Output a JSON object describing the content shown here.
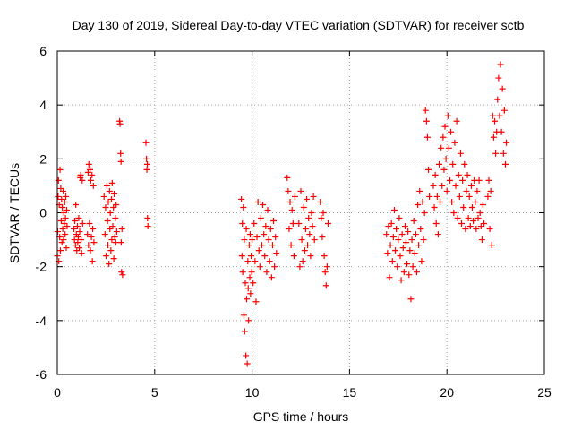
{
  "chart_data": {
    "type": "scatter",
    "title": "Day 130 of 2019, Sidereal Day-to-day VTEC variation (SDTVAR) for receiver sctb",
    "xlabel": "GPS time / hours",
    "ylabel": "SDTVAR / TECUs",
    "xlim": [
      0,
      25
    ],
    "ylim": [
      -6,
      6
    ],
    "xticks": [
      0,
      5,
      10,
      15,
      20,
      25
    ],
    "yticks": [
      -6,
      -4,
      -2,
      0,
      2,
      4,
      6
    ],
    "xtick_labels": [
      "0",
      "5",
      "10",
      "15",
      "20",
      "25"
    ],
    "ytick_labels": [
      "-6",
      "-4",
      "-2",
      "0",
      "2",
      "4",
      "6"
    ],
    "grid": true,
    "legend": "none",
    "marker": "plus",
    "series_color": "#ff0000",
    "points": [
      [
        0.0,
        -1.6
      ],
      [
        0.02,
        -0.7
      ],
      [
        0.04,
        0.6
      ],
      [
        0.06,
        1.2
      ],
      [
        0.08,
        -1.8
      ],
      [
        0.1,
        0.3
      ],
      [
        0.12,
        -0.9
      ],
      [
        0.14,
        1.6
      ],
      [
        0.16,
        -1.4
      ],
      [
        0.18,
        0.9
      ],
      [
        0.2,
        -0.3
      ],
      [
        0.22,
        0.5
      ],
      [
        0.24,
        -1.1
      ],
      [
        0.26,
        0.2
      ],
      [
        0.28,
        -0.6
      ],
      [
        0.3,
        0.8
      ],
      [
        0.32,
        -1.0
      ],
      [
        0.34,
        0.0
      ],
      [
        0.36,
        -0.4
      ],
      [
        0.38,
        0.4
      ],
      [
        0.4,
        -0.8
      ],
      [
        0.42,
        -0.2
      ],
      [
        0.44,
        0.6
      ],
      [
        0.46,
        -1.3
      ],
      [
        0.48,
        0.1
      ],
      [
        0.5,
        -0.5
      ],
      [
        0.85,
        -0.6
      ],
      [
        0.88,
        -1.0
      ],
      [
        0.9,
        -0.3
      ],
      [
        0.93,
        -1.2
      ],
      [
        0.95,
        0.3
      ],
      [
        0.98,
        -0.8
      ],
      [
        1.0,
        -1.4
      ],
      [
        1.03,
        -0.5
      ],
      [
        1.05,
        -1.1
      ],
      [
        1.08,
        -0.9
      ],
      [
        1.1,
        -0.2
      ],
      [
        1.13,
        -1.3
      ],
      [
        1.15,
        -0.7
      ],
      [
        1.18,
        1.3
      ],
      [
        1.2,
        1.4
      ],
      [
        1.22,
        -1.0
      ],
      [
        1.25,
        -1.5
      ],
      [
        1.28,
        1.2
      ],
      [
        1.3,
        -0.4
      ],
      [
        1.55,
        -0.8
      ],
      [
        1.58,
        1.5
      ],
      [
        1.6,
        -1.2
      ],
      [
        1.62,
        1.8
      ],
      [
        1.65,
        -0.4
      ],
      [
        1.68,
        1.6
      ],
      [
        1.7,
        -1.4
      ],
      [
        1.72,
        1.2
      ],
      [
        1.75,
        -0.9
      ],
      [
        1.78,
        1.4
      ],
      [
        1.8,
        -1.8
      ],
      [
        1.82,
        -0.6
      ],
      [
        1.85,
        1.0
      ],
      [
        1.88,
        -1.1
      ],
      [
        2.4,
        0.6
      ],
      [
        2.45,
        -0.8
      ],
      [
        2.48,
        0.2
      ],
      [
        2.5,
        -1.6
      ],
      [
        2.55,
        1.0
      ],
      [
        2.58,
        -0.3
      ],
      [
        2.6,
        -1.2
      ],
      [
        2.62,
        0.4
      ],
      [
        2.65,
        -1.9
      ],
      [
        2.68,
        0.8
      ],
      [
        2.7,
        -0.6
      ],
      [
        2.72,
        0.0
      ],
      [
        2.75,
        -1.4
      ],
      [
        2.78,
        0.5
      ],
      [
        2.8,
        -1.0
      ],
      [
        2.82,
        1.1
      ],
      [
        2.85,
        -0.5
      ],
      [
        2.88,
        0.2
      ],
      [
        2.9,
        -1.7
      ],
      [
        2.92,
        0.7
      ],
      [
        2.95,
        -0.9
      ],
      [
        2.98,
        -0.2
      ],
      [
        3.0,
        -1.1
      ],
      [
        3.02,
        0.3
      ],
      [
        3.05,
        -0.7
      ],
      [
        3.2,
        3.4
      ],
      [
        3.22,
        3.3
      ],
      [
        3.25,
        2.2
      ],
      [
        3.27,
        1.9
      ],
      [
        3.28,
        -1.1
      ],
      [
        3.3,
        -2.2
      ],
      [
        3.32,
        -0.6
      ],
      [
        3.35,
        -2.3
      ],
      [
        4.55,
        2.6
      ],
      [
        4.58,
        2.0
      ],
      [
        4.6,
        1.6
      ],
      [
        4.62,
        1.8
      ],
      [
        4.63,
        -0.2
      ],
      [
        4.65,
        -0.5
      ],
      [
        9.45,
        0.5
      ],
      [
        9.48,
        -1.6
      ],
      [
        9.5,
        -0.4
      ],
      [
        9.52,
        -2.2
      ],
      [
        9.55,
        0.2
      ],
      [
        9.58,
        -3.8
      ],
      [
        9.6,
        -1.0
      ],
      [
        9.62,
        -4.4
      ],
      [
        9.65,
        -2.6
      ],
      [
        9.68,
        -5.3
      ],
      [
        9.7,
        -0.6
      ],
      [
        9.72,
        -3.2
      ],
      [
        9.75,
        -5.6
      ],
      [
        9.78,
        -1.8
      ],
      [
        9.8,
        -2.8
      ],
      [
        9.82,
        -4.0
      ],
      [
        9.85,
        -1.2
      ],
      [
        9.88,
        -2.4
      ],
      [
        9.9,
        -0.8
      ],
      [
        9.92,
        -3.0
      ],
      [
        9.95,
        -1.6
      ],
      [
        9.98,
        -2.2
      ],
      [
        10.0,
        -1.0
      ],
      [
        10.05,
        -2.6
      ],
      [
        10.1,
        -0.4
      ],
      [
        10.15,
        -1.8
      ],
      [
        10.2,
        -3.3
      ],
      [
        10.25,
        -0.9
      ],
      [
        10.3,
        0.4
      ],
      [
        10.35,
        -1.4
      ],
      [
        10.4,
        -2.0
      ],
      [
        10.45,
        -0.2
      ],
      [
        10.5,
        -1.2
      ],
      [
        10.55,
        0.3
      ],
      [
        10.6,
        -0.8
      ],
      [
        10.65,
        -1.6
      ],
      [
        10.7,
        -0.5
      ],
      [
        10.75,
        -2.2
      ],
      [
        10.8,
        0.1
      ],
      [
        10.85,
        -1.0
      ],
      [
        10.9,
        -1.8
      ],
      [
        10.95,
        -0.6
      ],
      [
        11.0,
        -2.4
      ],
      [
        11.05,
        -1.2
      ],
      [
        11.1,
        -0.3
      ],
      [
        11.15,
        -2.0
      ],
      [
        11.2,
        -0.9
      ],
      [
        11.25,
        -1.5
      ],
      [
        11.8,
        1.3
      ],
      [
        11.85,
        0.8
      ],
      [
        11.9,
        -0.6
      ],
      [
        11.95,
        0.4
      ],
      [
        12.0,
        -1.2
      ],
      [
        12.05,
        0.1
      ],
      [
        12.1,
        -0.4
      ],
      [
        12.15,
        -1.6
      ],
      [
        12.2,
        0.6
      ],
      [
        12.4,
        -0.4
      ],
      [
        12.45,
        -2.0
      ],
      [
        12.5,
        0.8
      ],
      [
        12.55,
        -1.0
      ],
      [
        12.6,
        -1.8
      ],
      [
        12.65,
        0.2
      ],
      [
        12.7,
        -1.4
      ],
      [
        12.75,
        -0.6
      ],
      [
        12.8,
        0.5
      ],
      [
        12.85,
        -1.2
      ],
      [
        12.9,
        -0.2
      ],
      [
        12.95,
        -0.8
      ],
      [
        13.0,
        -1.6
      ],
      [
        13.05,
        0.0
      ],
      [
        13.1,
        -0.5
      ],
      [
        13.15,
        0.6
      ],
      [
        13.2,
        -1.0
      ],
      [
        13.5,
        0.4
      ],
      [
        13.55,
        -0.2
      ],
      [
        13.6,
        -0.9
      ],
      [
        13.65,
        0.0
      ],
      [
        13.7,
        -1.6
      ],
      [
        13.75,
        -2.2
      ],
      [
        13.8,
        -2.7
      ],
      [
        13.85,
        -2.0
      ],
      [
        13.9,
        -0.4
      ],
      [
        16.9,
        -0.8
      ],
      [
        16.95,
        -1.5
      ],
      [
        17.0,
        -0.5
      ],
      [
        17.05,
        -2.4
      ],
      [
        17.1,
        -1.2
      ],
      [
        17.15,
        -0.4
      ],
      [
        17.2,
        -1.8
      ],
      [
        17.25,
        -0.9
      ],
      [
        17.3,
        0.1
      ],
      [
        17.35,
        -1.4
      ],
      [
        17.4,
        -0.6
      ],
      [
        17.45,
        -2.0
      ],
      [
        17.5,
        -1.0
      ],
      [
        17.55,
        -0.2
      ],
      [
        17.6,
        -1.6
      ],
      [
        17.65,
        -2.5
      ],
      [
        17.7,
        -0.8
      ],
      [
        17.75,
        -1.3
      ],
      [
        17.8,
        -2.2
      ],
      [
        17.85,
        -0.5
      ],
      [
        17.9,
        -1.1
      ],
      [
        17.95,
        -1.9
      ],
      [
        18.0,
        -0.7
      ],
      [
        18.05,
        -2.3
      ],
      [
        18.1,
        -1.4
      ],
      [
        18.15,
        -3.2
      ],
      [
        18.2,
        -1.0
      ],
      [
        18.25,
        -2.0
      ],
      [
        18.3,
        -0.3
      ],
      [
        18.35,
        -1.5
      ],
      [
        18.4,
        -0.8
      ],
      [
        18.45,
        -2.2
      ],
      [
        18.5,
        0.3
      ],
      [
        18.55,
        -1.2
      ],
      [
        18.6,
        0.8
      ],
      [
        18.65,
        -0.6
      ],
      [
        18.7,
        -1.8
      ],
      [
        18.75,
        0.4
      ],
      [
        18.8,
        -1.0
      ],
      [
        18.85,
        0.0
      ],
      [
        18.9,
        3.8
      ],
      [
        18.95,
        3.4
      ],
      [
        19.0,
        2.8
      ],
      [
        19.05,
        1.6
      ],
      [
        19.1,
        0.6
      ],
      [
        19.3,
        1.0
      ],
      [
        19.35,
        0.2
      ],
      [
        19.4,
        1.4
      ],
      [
        19.45,
        -0.4
      ],
      [
        19.5,
        0.6
      ],
      [
        19.55,
        -0.8
      ],
      [
        19.6,
        1.8
      ],
      [
        19.65,
        0.4
      ],
      [
        19.7,
        2.4
      ],
      [
        19.75,
        1.0
      ],
      [
        19.8,
        2.8
      ],
      [
        19.85,
        1.6
      ],
      [
        19.9,
        3.2
      ],
      [
        19.95,
        2.0
      ],
      [
        20.0,
        0.8
      ],
      [
        20.05,
        3.6
      ],
      [
        20.1,
        2.4
      ],
      [
        20.15,
        1.2
      ],
      [
        20.2,
        3.0
      ],
      [
        20.25,
        0.4
      ],
      [
        20.3,
        1.8
      ],
      [
        20.35,
        0.0
      ],
      [
        20.4,
        2.6
      ],
      [
        20.45,
        1.0
      ],
      [
        20.5,
        3.4
      ],
      [
        20.55,
        -0.2
      ],
      [
        20.6,
        1.4
      ],
      [
        20.65,
        0.6
      ],
      [
        20.7,
        2.2
      ],
      [
        20.75,
        -0.4
      ],
      [
        20.8,
        1.2
      ],
      [
        20.85,
        0.2
      ],
      [
        20.9,
        1.8
      ],
      [
        20.95,
        -0.6
      ],
      [
        21.0,
        0.8
      ],
      [
        21.05,
        1.4
      ],
      [
        21.1,
        -0.2
      ],
      [
        21.15,
        0.6
      ],
      [
        21.2,
        -0.5
      ],
      [
        21.25,
        1.0
      ],
      [
        21.3,
        0.2
      ],
      [
        21.35,
        -0.3
      ],
      [
        21.4,
        1.2
      ],
      [
        21.45,
        0.4
      ],
      [
        21.5,
        -0.6
      ],
      [
        21.55,
        0.8
      ],
      [
        21.6,
        -0.2
      ],
      [
        21.65,
        1.2
      ],
      [
        21.7,
        0.0
      ],
      [
        21.75,
        -0.5
      ],
      [
        21.8,
        -1.0
      ],
      [
        21.85,
        0.3
      ],
      [
        21.9,
        -0.4
      ],
      [
        22.1,
        0.6
      ],
      [
        22.15,
        1.2
      ],
      [
        22.2,
        -0.6
      ],
      [
        22.25,
        0.8
      ],
      [
        22.3,
        -1.2
      ],
      [
        22.35,
        3.6
      ],
      [
        22.4,
        2.8
      ],
      [
        22.45,
        3.4
      ],
      [
        22.5,
        2.2
      ],
      [
        22.55,
        3.0
      ],
      [
        22.6,
        4.2
      ],
      [
        22.65,
        5.0
      ],
      [
        22.7,
        3.6
      ],
      [
        22.75,
        5.5
      ],
      [
        22.8,
        3.0
      ],
      [
        22.85,
        4.6
      ],
      [
        22.9,
        2.2
      ],
      [
        22.95,
        3.8
      ],
      [
        23.0,
        1.8
      ],
      [
        23.05,
        2.6
      ]
    ]
  }
}
